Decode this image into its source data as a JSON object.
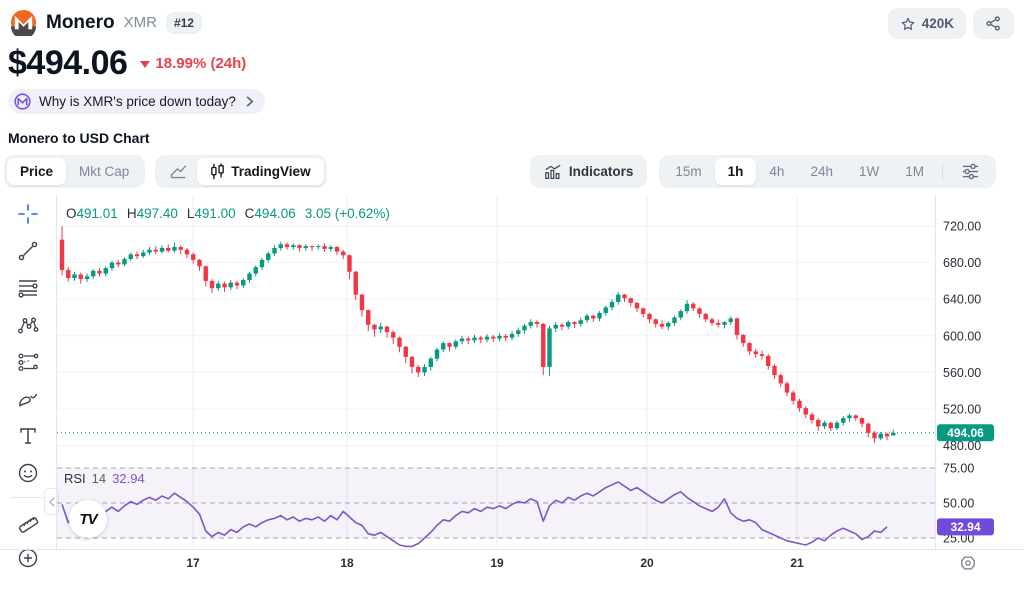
{
  "header": {
    "coin_name": "Monero",
    "ticker": "XMR",
    "rank": "#12",
    "watchlist_count": "420K",
    "price": "$494.06",
    "change": "18.99% (24h)",
    "banner": "Why is XMR's price down today?"
  },
  "section": {
    "title": "Monero to USD Chart"
  },
  "toolbar": {
    "price_tab": "Price",
    "mktcap_tab": "Mkt Cap",
    "tradingview_tab": "TradingView",
    "indicators": "Indicators",
    "timeframes": [
      "15m",
      "1h",
      "4h",
      "24h",
      "1W",
      "1M"
    ],
    "active_timeframe": "1h"
  },
  "chart_data": {
    "type": "candlestick",
    "interval": "1h",
    "legend": {
      "o_label": "O",
      "o": "491.01",
      "h_label": "H",
      "h": "497.40",
      "l_label": "L",
      "l": "491.00",
      "c_label": "C",
      "c": "494.06",
      "change": "3.05 (+0.62%)"
    },
    "rsi_legend": {
      "name": "RSI",
      "period": "14",
      "value": "32.94"
    },
    "watermark": "TV",
    "price_axis": [
      720,
      680,
      640,
      600,
      560,
      520,
      480
    ],
    "last_price": 494.06,
    "rsi_axis": [
      75,
      50,
      25
    ],
    "rsi_last": 32.94,
    "x_ticks": [
      {
        "label": "17",
        "x": 193
      },
      {
        "label": "18",
        "x": 347
      },
      {
        "label": "19",
        "x": 497
      },
      {
        "label": "20",
        "x": 647
      },
      {
        "label": "21",
        "x": 797
      }
    ],
    "ylim": [
      470,
      735
    ],
    "grid": true,
    "legend_position": "top-left",
    "colors": {
      "up": "#089981",
      "down": "#F23645",
      "rsi": "#7E57C2",
      "rsi_band": "#7E57C2"
    },
    "candles": [
      [
        705,
        720,
        666,
        672
      ],
      [
        672,
        675,
        659,
        663
      ],
      [
        663,
        670,
        660,
        667
      ],
      [
        667,
        669,
        657,
        662
      ],
      [
        662,
        668,
        659,
        665
      ],
      [
        665,
        673,
        662,
        671
      ],
      [
        671,
        674,
        665,
        668
      ],
      [
        668,
        676,
        665,
        674
      ],
      [
        674,
        682,
        671,
        680
      ],
      [
        680,
        683,
        675,
        678
      ],
      [
        678,
        686,
        676,
        684
      ],
      [
        684,
        691,
        682,
        689
      ],
      [
        689,
        692,
        684,
        687
      ],
      [
        687,
        694,
        685,
        691
      ],
      [
        691,
        697,
        688,
        694
      ],
      [
        694,
        698,
        689,
        692
      ],
      [
        692,
        699,
        690,
        696
      ],
      [
        696,
        700,
        691,
        693
      ],
      [
        693,
        702,
        691,
        697
      ],
      [
        697,
        699,
        689,
        694
      ],
      [
        694,
        696,
        685,
        689
      ],
      [
        689,
        691,
        679,
        683
      ],
      [
        683,
        684,
        671,
        676
      ],
      [
        676,
        677,
        654,
        660
      ],
      [
        660,
        662,
        647,
        652
      ],
      [
        652,
        660,
        649,
        657
      ],
      [
        657,
        659,
        648,
        653
      ],
      [
        653,
        661,
        650,
        658
      ],
      [
        658,
        660,
        651,
        655
      ],
      [
        655,
        663,
        652,
        661
      ],
      [
        661,
        670,
        658,
        668
      ],
      [
        668,
        677,
        665,
        675
      ],
      [
        675,
        685,
        672,
        683
      ],
      [
        683,
        692,
        680,
        690
      ],
      [
        690,
        699,
        687,
        696
      ],
      [
        696,
        703,
        693,
        700
      ],
      [
        700,
        702,
        694,
        697
      ],
      [
        697,
        701,
        694,
        699
      ],
      [
        699,
        700,
        692,
        696
      ],
      [
        696,
        700,
        693,
        698
      ],
      [
        698,
        699,
        693,
        697
      ],
      [
        697,
        700,
        694,
        698
      ],
      [
        698,
        701,
        692,
        695
      ],
      [
        695,
        699,
        692,
        697
      ],
      [
        697,
        698,
        688,
        692
      ],
      [
        692,
        694,
        684,
        688
      ],
      [
        688,
        689,
        662,
        670
      ],
      [
        670,
        671,
        639,
        645
      ],
      [
        645,
        646,
        621,
        628
      ],
      [
        628,
        629,
        605,
        612
      ],
      [
        612,
        613,
        599,
        607
      ],
      [
        607,
        614,
        603,
        610
      ],
      [
        610,
        611,
        598,
        604
      ],
      [
        604,
        606,
        591,
        598
      ],
      [
        598,
        599,
        582,
        588
      ],
      [
        588,
        589,
        570,
        577
      ],
      [
        577,
        578,
        559,
        566
      ],
      [
        566,
        568,
        555,
        560
      ],
      [
        560,
        569,
        556,
        566
      ],
      [
        566,
        577,
        562,
        575
      ],
      [
        575,
        587,
        572,
        585
      ],
      [
        585,
        594,
        582,
        592
      ],
      [
        592,
        593,
        583,
        588
      ],
      [
        588,
        596,
        585,
        594
      ],
      [
        594,
        600,
        591,
        597
      ],
      [
        597,
        599,
        591,
        595
      ],
      [
        595,
        601,
        592,
        598
      ],
      [
        598,
        600,
        592,
        596
      ],
      [
        596,
        602,
        593,
        599
      ],
      [
        599,
        601,
        593,
        597
      ],
      [
        597,
        603,
        594,
        600
      ],
      [
        600,
        602,
        594,
        598
      ],
      [
        598,
        605,
        595,
        602
      ],
      [
        602,
        609,
        599,
        606
      ],
      [
        606,
        613,
        602,
        611
      ],
      [
        611,
        618,
        608,
        615
      ],
      [
        615,
        617,
        609,
        613
      ],
      [
        613,
        614,
        557,
        566
      ],
      [
        566,
        611,
        556,
        608
      ],
      [
        608,
        615,
        604,
        612
      ],
      [
        612,
        614,
        606,
        610
      ],
      [
        610,
        617,
        607,
        615
      ],
      [
        615,
        616,
        609,
        613
      ],
      [
        613,
        620,
        610,
        617
      ],
      [
        617,
        624,
        614,
        622
      ],
      [
        622,
        623,
        615,
        619
      ],
      [
        619,
        627,
        616,
        625
      ],
      [
        625,
        633,
        622,
        631
      ],
      [
        631,
        640,
        628,
        637
      ],
      [
        637,
        648,
        634,
        645
      ],
      [
        645,
        646,
        637,
        641
      ],
      [
        641,
        642,
        632,
        636
      ],
      [
        636,
        637,
        626,
        630
      ],
      [
        630,
        631,
        620,
        624
      ],
      [
        624,
        625,
        614,
        618
      ],
      [
        618,
        619,
        609,
        613
      ],
      [
        613,
        617,
        607,
        610
      ],
      [
        610,
        616,
        606,
        614
      ],
      [
        614,
        622,
        611,
        620
      ],
      [
        620,
        629,
        617,
        627
      ],
      [
        627,
        639,
        624,
        635
      ],
      [
        635,
        637,
        627,
        630
      ],
      [
        630,
        631,
        620,
        624
      ],
      [
        624,
        625,
        615,
        618
      ],
      [
        618,
        620,
        611,
        614
      ],
      [
        614,
        618,
        609,
        612
      ],
      [
        612,
        616,
        608,
        615
      ],
      [
        615,
        621,
        612,
        619
      ],
      [
        619,
        620,
        596,
        601
      ],
      [
        601,
        602,
        588,
        592
      ],
      [
        592,
        593,
        579,
        583
      ],
      [
        583,
        586,
        576,
        580
      ],
      [
        580,
        584,
        574,
        578
      ],
      [
        578,
        580,
        563,
        567
      ],
      [
        567,
        569,
        553,
        557
      ],
      [
        557,
        559,
        544,
        548
      ],
      [
        548,
        550,
        534,
        538
      ],
      [
        538,
        540,
        525,
        529
      ],
      [
        529,
        531,
        517,
        521
      ],
      [
        521,
        523,
        510,
        514
      ],
      [
        514,
        516,
        504,
        508
      ],
      [
        508,
        510,
        496,
        501
      ],
      [
        501,
        507,
        498,
        505
      ],
      [
        505,
        506,
        496,
        499
      ],
      [
        499,
        507,
        497,
        505
      ],
      [
        505,
        512,
        502,
        510
      ],
      [
        510,
        515,
        506,
        513
      ],
      [
        513,
        514,
        507,
        510
      ],
      [
        510,
        511,
        500,
        504
      ],
      [
        504,
        505,
        489,
        494
      ],
      [
        494,
        496,
        483,
        488
      ],
      [
        488,
        495,
        486,
        493
      ],
      [
        493,
        494,
        486,
        490
      ],
      [
        491.01,
        497.4,
        491,
        494.06
      ]
    ],
    "rsi": [
      49,
      36,
      42,
      39,
      43,
      46,
      41,
      44,
      47,
      44,
      48,
      51,
      49,
      52,
      54,
      52,
      55,
      53,
      57,
      54,
      51,
      47,
      42,
      30,
      26,
      29,
      27,
      31,
      29,
      33,
      35,
      33,
      36,
      38,
      39,
      41,
      38,
      40,
      37,
      39,
      38,
      40,
      37,
      41,
      38,
      44,
      40,
      36,
      34,
      28,
      27,
      29,
      26,
      23,
      20,
      19,
      19,
      21,
      25,
      29,
      34,
      38,
      37,
      41,
      44,
      43,
      46,
      44,
      47,
      46,
      48,
      46,
      49,
      51,
      50,
      53,
      51,
      37,
      48,
      52,
      50,
      54,
      52,
      55,
      57,
      55,
      58,
      61,
      63,
      65,
      62,
      59,
      61,
      58,
      55,
      52,
      50,
      53,
      56,
      58,
      54,
      51,
      48,
      46,
      44,
      47,
      53,
      43,
      39,
      37,
      38,
      36,
      31,
      29,
      27,
      25,
      23,
      22,
      21,
      20,
      22,
      25,
      23,
      27,
      30,
      32,
      30,
      28,
      24,
      26,
      30,
      29,
      32.94
    ]
  }
}
